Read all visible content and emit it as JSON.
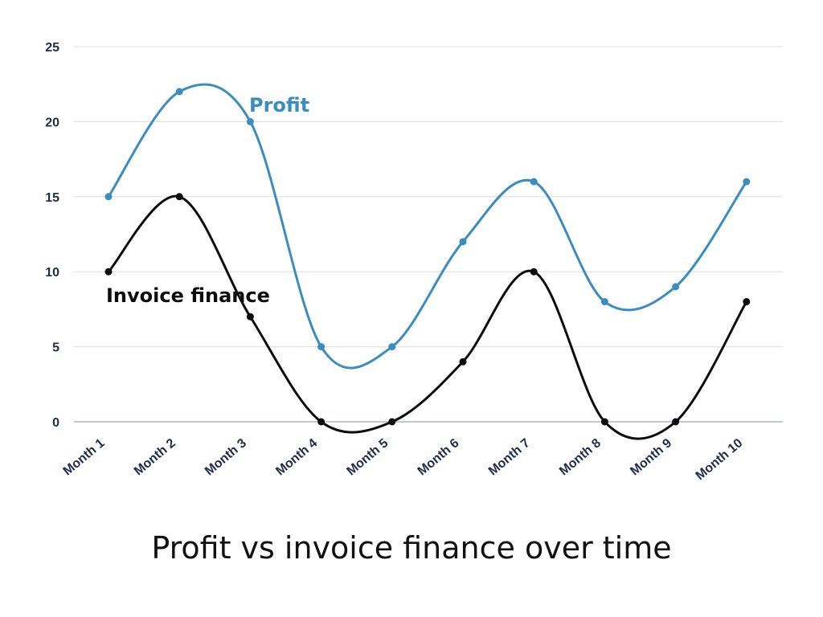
{
  "chart_data": {
    "type": "line",
    "title": "Profit vs invoice finance over time",
    "xlabel": "",
    "ylabel": "",
    "categories": [
      "Month 1",
      "Month 2",
      "Month 3",
      "Month 4",
      "Month 5",
      "Month 6",
      "Month 7",
      "Month 8",
      "Month 9",
      "Month 10"
    ],
    "ylim": [
      0,
      25
    ],
    "yticks": [
      0,
      5,
      10,
      15,
      20,
      25
    ],
    "grid": true,
    "series": [
      {
        "name": "Profit",
        "color": "#3a8dbf",
        "values": [
          15,
          22,
          20,
          5,
          5,
          12,
          16,
          8,
          9,
          16
        ]
      },
      {
        "name": "Invoice finance",
        "color": "#0d0d0d",
        "values": [
          10,
          15,
          7,
          0,
          0,
          4,
          10,
          0,
          0,
          8
        ]
      }
    ]
  }
}
